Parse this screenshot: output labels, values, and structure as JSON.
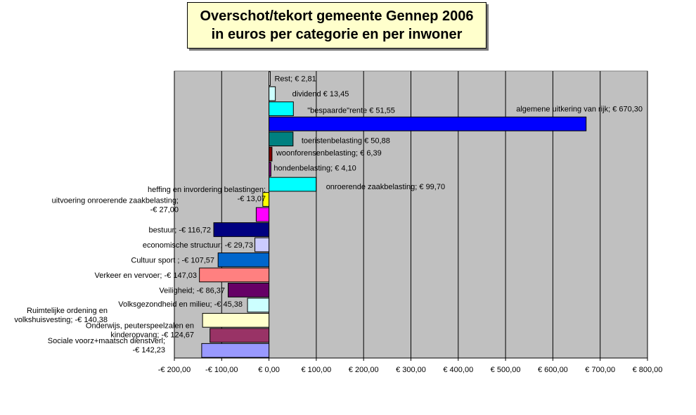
{
  "chart_data": {
    "type": "bar",
    "orientation": "horizontal",
    "title_line1": "Overschot/tekort gemeente Gennep 2006",
    "title_line2": "in euros per categorie en per inwoner",
    "xlim": [
      -200,
      800
    ],
    "x_ticks": [
      -200,
      -100,
      0,
      100,
      200,
      300,
      400,
      500,
      600,
      700,
      800
    ],
    "x_tick_labels": [
      "-€ 200,00",
      "-€ 100,00",
      "€ 0,00",
      "€ 100,00",
      "€ 200,00",
      "€ 300,00",
      "€ 400,00",
      "€ 500,00",
      "€ 600,00",
      "€ 700,00",
      "€ 800,00"
    ],
    "grid": "vertical",
    "plot_background": "#c0c0c0",
    "bars": [
      {
        "category": "Rest",
        "value": 2.81,
        "label_lines": [
          "Rest; € 2,81"
        ],
        "color": "#ffffff"
      },
      {
        "category": "dividend",
        "value": 13.45,
        "label_lines": [
          "dividend  € 13,45"
        ],
        "color": "#ccffff"
      },
      {
        "category": "\"bespaarde\"rente",
        "value": 51.55,
        "label_lines": [
          "\"bespaarde\"rente  € 51,55"
        ],
        "color": "#00ffff"
      },
      {
        "category": "algemene uitkering van rijk",
        "value": 670.3,
        "label_lines": [
          "algemene uitkering van rijk; € 670,30"
        ],
        "color": "#0000ff"
      },
      {
        "category": "toeristenbelasting",
        "value": 50.88,
        "label_lines": [
          "toeristenbelasting  € 50,88"
        ],
        "color": "#008080"
      },
      {
        "category": "woonforensenbelasting",
        "value": 6.39,
        "label_lines": [
          "woonforensenbelasting; € 6,39"
        ],
        "color": "#800000"
      },
      {
        "category": "hondenbelasting",
        "value": 4.1,
        "label_lines": [
          "hondenbelasting; € 4,10"
        ],
        "color": "#800080"
      },
      {
        "category": "onroerende zaakbelasting",
        "value": 99.7,
        "label_lines": [
          "onroerende zaakbelasting; € 99,70"
        ],
        "color": "#00ffff"
      },
      {
        "category": "heffing en invordering belastingen",
        "value": -13.07,
        "label_lines": [
          "heffing en invordering belastingen;",
          "-€ 13,07"
        ],
        "color": "#ffff00"
      },
      {
        "category": "uitvoering onroerende zaakbelasting",
        "value": -27.0,
        "label_lines": [
          "uitvoering onroerende zaakbelasting;",
          "-€ 27,00"
        ],
        "color": "#ff00ff"
      },
      {
        "category": "bestuur",
        "value": -116.72,
        "label_lines": [
          "bestuur; -€ 116,72"
        ],
        "color": "#000080"
      },
      {
        "category": "economische structuur",
        "value": -29.73,
        "label_lines": [
          "economische structuur; -€ 29,73"
        ],
        "color": "#ccccff"
      },
      {
        "category": "Cultuur sport",
        "value": -107.57,
        "label_lines": [
          "Cultuur sport  ; -€ 107,57"
        ],
        "color": "#0066cc"
      },
      {
        "category": "Verkeer en vervoer",
        "value": -147.03,
        "label_lines": [
          "Verkeer en vervoer; -€ 147,03"
        ],
        "color": "#ff8080"
      },
      {
        "category": "Veiligheid",
        "value": -86.37,
        "label_lines": [
          "Veiligheid; -€ 86,37"
        ],
        "color": "#660066"
      },
      {
        "category": "Volksgezondheid en milieu",
        "value": -45.38,
        "label_lines": [
          "Volksgezondheid en milieu; -€ 45,38"
        ],
        "color": "#ccffff"
      },
      {
        "category": "Ruimtelijke ordening en volkshuisvesting",
        "value": -140.38,
        "label_lines": [
          "Ruimtelijke ordening en",
          "volkshuisvesting; -€ 140,38"
        ],
        "color": "#ffffcc"
      },
      {
        "category": "Onderwijs, peuterspeelzalen en kinderopvang",
        "value": -124.67,
        "label_lines": [
          "Onderwijs, peuterspeelzalen en",
          "kinderopvang; -€ 124,67"
        ],
        "color": "#993366"
      },
      {
        "category": "Sociale voorz+maatsch dienstverl",
        "value": -142.23,
        "label_lines": [
          "Sociale voorz+maatsch dienstverl;",
          "-€ 142,23"
        ],
        "color": "#9999ff"
      }
    ]
  }
}
